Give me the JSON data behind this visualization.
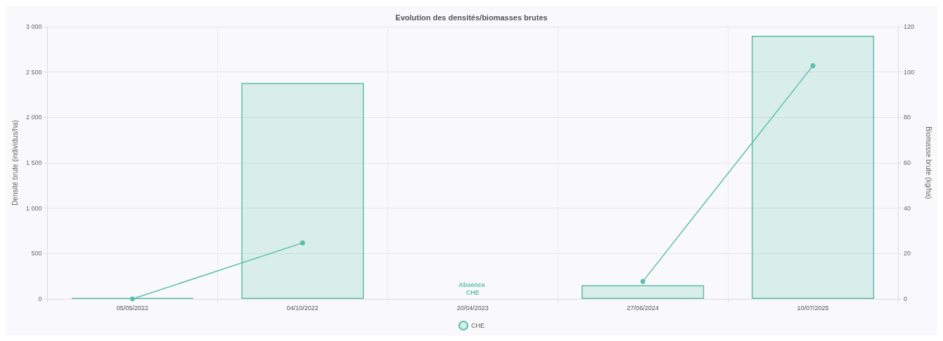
{
  "chart_data": {
    "type": "bar",
    "title": "Evolution des densités/biomasses brutes",
    "ylabel": "Densité brute (individus/ha)",
    "y2label": "Biomasse brute (kg/ha)",
    "categories": [
      "05/05/2022",
      "04/10/2022",
      "20/04/2023",
      "27/06/2024",
      "10/07/2025"
    ],
    "series": [
      {
        "name": "CHE",
        "color": "#5bbfaa",
        "values": [
          10,
          2380,
          null,
          150,
          2900
        ]
      },
      {
        "type": "line",
        "axis": "y2",
        "color": "#5bbfaa",
        "marker": "circle",
        "values": [
          0,
          24.7,
          null,
          7.7,
          102.8
        ]
      }
    ],
    "ylim": [
      0,
      3000
    ],
    "yticks": [
      {
        "value": 0,
        "label": "0"
      },
      {
        "value": 500,
        "label": "500"
      },
      {
        "value": 1000,
        "label": "1 000"
      },
      {
        "value": 1500,
        "label": "1 500"
      },
      {
        "value": 2000,
        "label": "2 000"
      },
      {
        "value": 2500,
        "label": "2 500"
      },
      {
        "value": 3000,
        "label": "3 000"
      }
    ],
    "y2lim": [
      0,
      120
    ],
    "y2ticks": [
      0,
      20,
      40,
      60,
      80,
      100,
      120
    ],
    "annotations": [
      "Absence CHE"
    ],
    "grid": true,
    "legend": "bottom"
  }
}
